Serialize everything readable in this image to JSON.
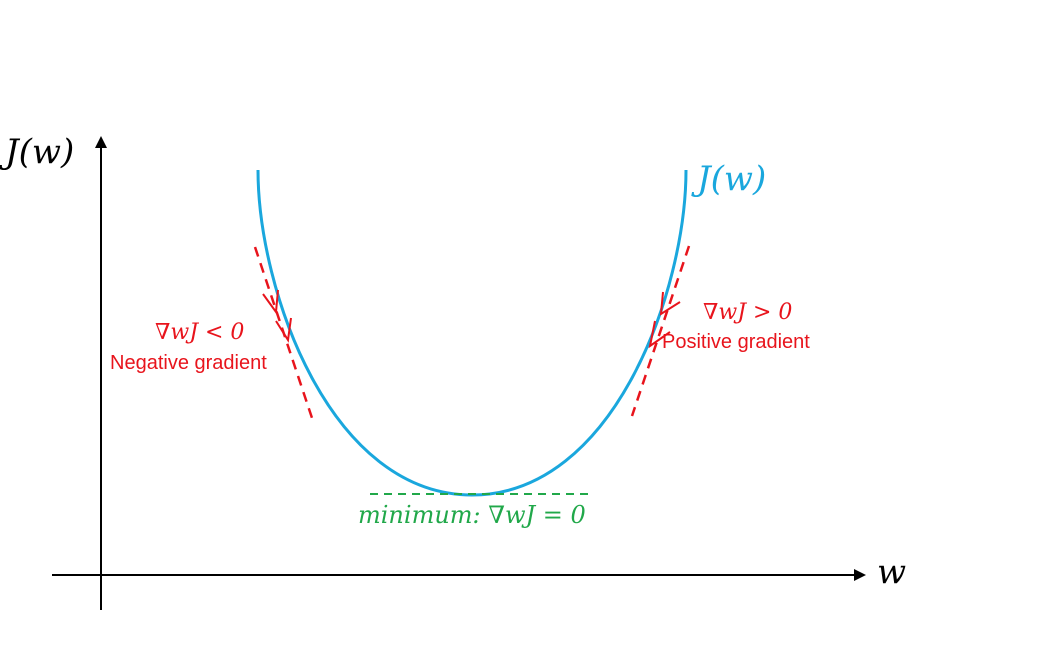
{
  "axes": {
    "y_label": "J(w)",
    "x_label": "w"
  },
  "curve": {
    "label": "J(w)",
    "color": "#1aa7dd"
  },
  "left_annotation": {
    "math": "∇wJ < 0",
    "text": "Negative gradient",
    "color": "#e8141c"
  },
  "right_annotation": {
    "math": "∇wJ > 0",
    "text": "Positive gradient",
    "color": "#e8141c"
  },
  "minimum_annotation": {
    "text": "minimum: ∇wJ = 0",
    "color": "#21a84a"
  }
}
